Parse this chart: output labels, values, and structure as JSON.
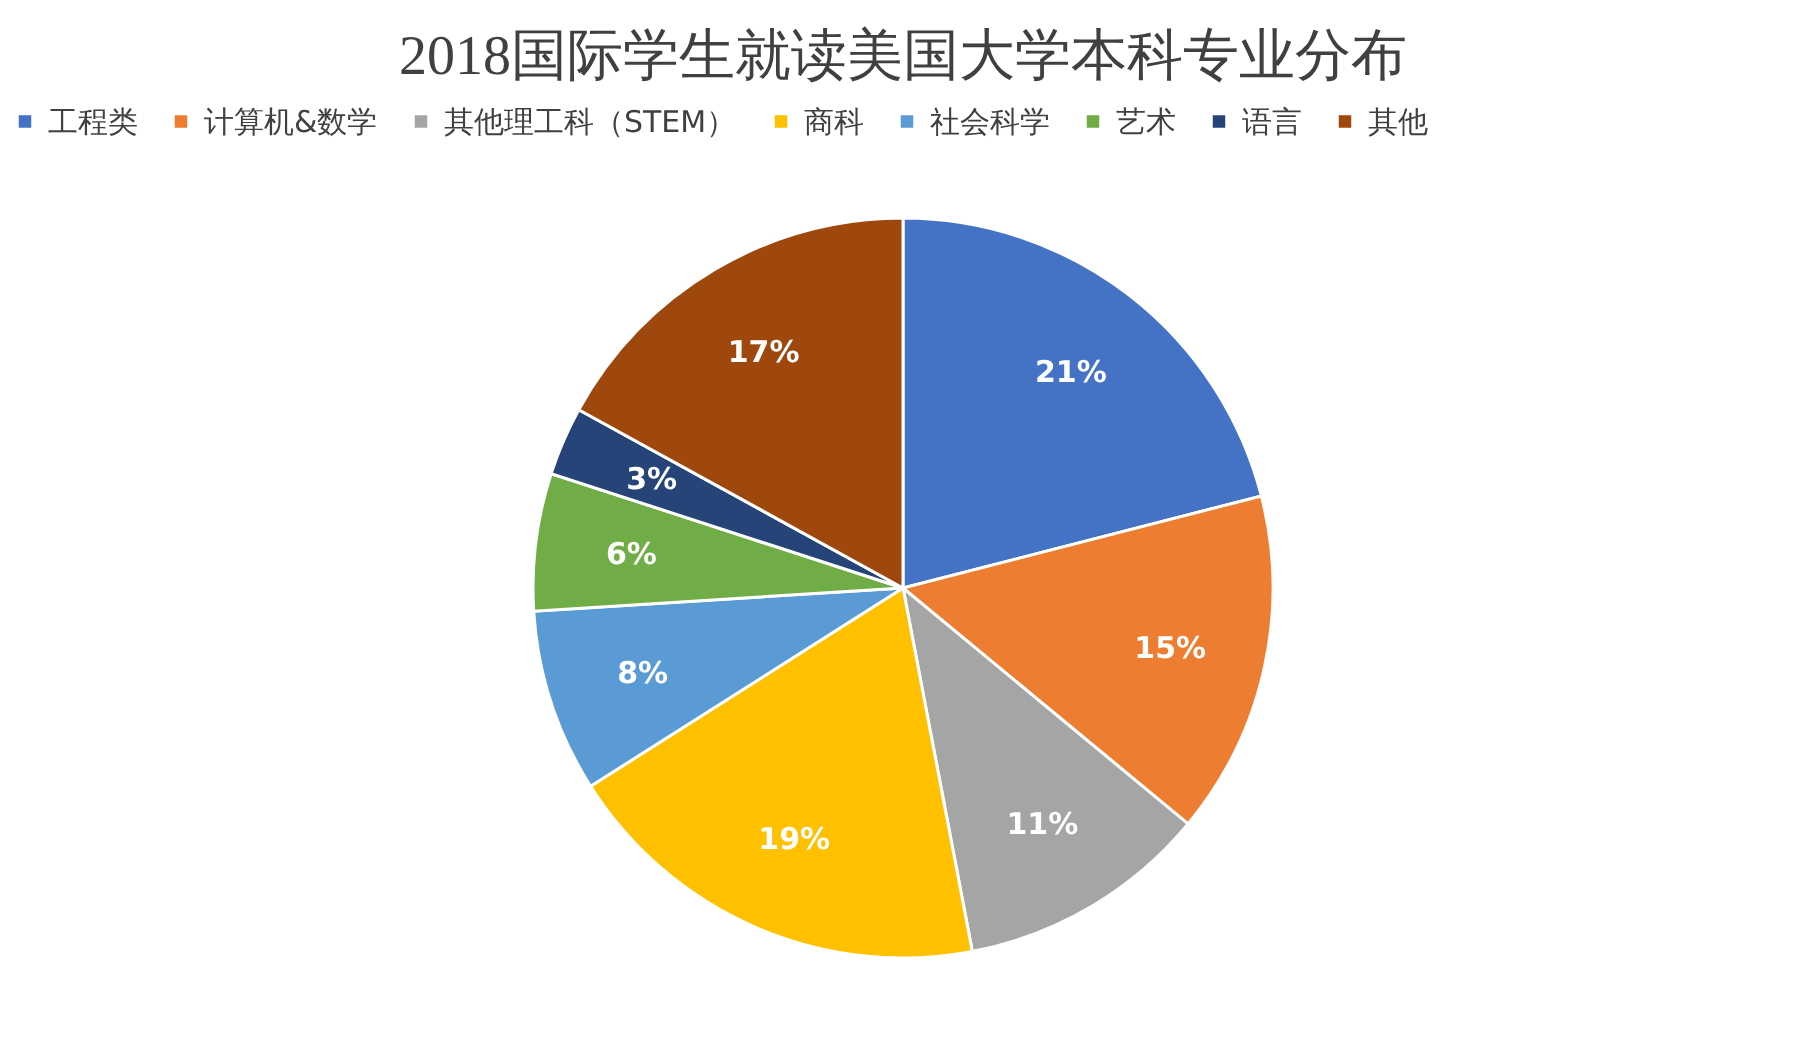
{
  "chart_data": {
    "type": "pie",
    "title": "2018国际学生就读美国大学本科专业分布",
    "categories": [
      "工程类",
      "计算机&数学",
      "其他理工科（STEM）",
      "商科",
      "社会科学",
      "艺术",
      "语言",
      "其他"
    ],
    "values": [
      21,
      15,
      11,
      19,
      8,
      6,
      3,
      17
    ],
    "value_labels": [
      "21%",
      "15%",
      "11%",
      "19%",
      "8%",
      "6%",
      "3%",
      "17%"
    ],
    "colors": [
      "#4472c4",
      "#ed7d31",
      "#a5a5a5",
      "#ffc000",
      "#5b9bd5",
      "#70ad47",
      "#264478",
      "#9e480e"
    ],
    "legend": "top"
  }
}
